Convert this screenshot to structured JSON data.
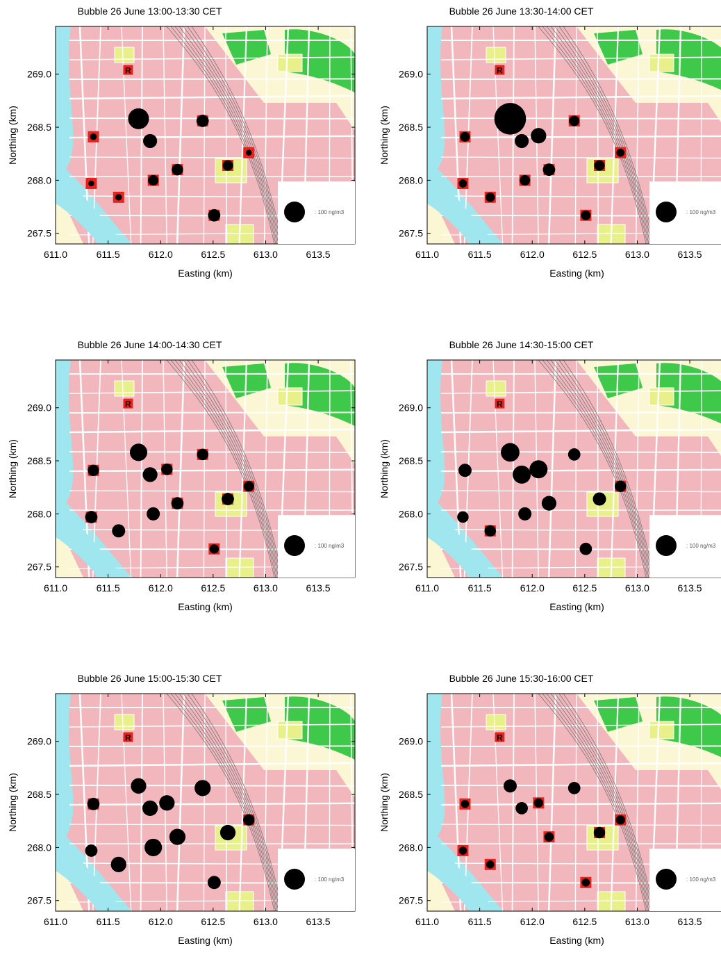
{
  "figure": {
    "xlabel": "Easting (km)",
    "ylabel": "Northing (km)",
    "legend_label": ": 100 ng/m3",
    "marker_R": "R"
  },
  "colors": {
    "site_square": "#e8231e",
    "bubble": "#000000",
    "water": "#9fe6ef",
    "buildings": "#f1b7bd",
    "forest": "#3fc94a",
    "park": "#e8f08a",
    "background": "#fbf7d4"
  },
  "chart_data": [
    {
      "type": "scatter",
      "title": "Bubble 26 June 13:00-13:30 CET",
      "xlabel": "Easting (km)",
      "ylabel": "Northing (km)",
      "xlim": [
        611.0,
        613.85
      ],
      "ylim": [
        267.4,
        269.45
      ],
      "xticks": [
        "611.0",
        "611.5",
        "612.0",
        "612.5",
        "613.0",
        "613.5"
      ],
      "yticks": [
        "267.5",
        "268.0",
        "268.5",
        "269.0"
      ],
      "reference_site": {
        "x": 611.69,
        "y": 269.04,
        "label": "R"
      },
      "legend": {
        "label": ": 100 ng/m3",
        "value": 100
      },
      "points": [
        {
          "x": 611.36,
          "y": 268.41,
          "value": 10,
          "site": true
        },
        {
          "x": 611.79,
          "y": 268.58,
          "value": 100,
          "site": false
        },
        {
          "x": 611.9,
          "y": 268.37,
          "value": 45,
          "site": false
        },
        {
          "x": 612.06,
          "y": 268.42,
          "value": 0,
          "site": false
        },
        {
          "x": 612.4,
          "y": 268.56,
          "value": 35,
          "site": true
        },
        {
          "x": 612.84,
          "y": 268.26,
          "value": 8,
          "site": true
        },
        {
          "x": 612.64,
          "y": 268.14,
          "value": 25,
          "site": true
        },
        {
          "x": 612.16,
          "y": 268.1,
          "value": 30,
          "site": true
        },
        {
          "x": 611.93,
          "y": 268.0,
          "value": 25,
          "site": true
        },
        {
          "x": 611.34,
          "y": 267.97,
          "value": 8,
          "site": true
        },
        {
          "x": 611.6,
          "y": 267.84,
          "value": 10,
          "site": true
        },
        {
          "x": 612.51,
          "y": 267.67,
          "value": 35,
          "site": true
        }
      ]
    },
    {
      "type": "scatter",
      "title": "Bubble 26 June 13:30-14:00 CET",
      "xlabel": "Easting (km)",
      "ylabel": "Northing (km)",
      "xlim": [
        611.0,
        613.85
      ],
      "ylim": [
        267.4,
        269.45
      ],
      "xticks": [
        "611.0",
        "611.5",
        "612.0",
        "612.5",
        "613.0",
        "613.5"
      ],
      "yticks": [
        "267.5",
        "268.0",
        "268.5",
        "269.0"
      ],
      "reference_site": {
        "x": 611.69,
        "y": 269.04,
        "label": "R"
      },
      "legend": {
        "label": ": 100 ng/m3",
        "value": 100
      },
      "points": [
        {
          "x": 611.36,
          "y": 268.41,
          "value": 22,
          "site": true
        },
        {
          "x": 611.79,
          "y": 268.58,
          "value": 230,
          "site": false
        },
        {
          "x": 611.9,
          "y": 268.37,
          "value": 45,
          "site": false
        },
        {
          "x": 612.06,
          "y": 268.42,
          "value": 55,
          "site": false
        },
        {
          "x": 612.4,
          "y": 268.56,
          "value": 25,
          "site": true
        },
        {
          "x": 612.84,
          "y": 268.26,
          "value": 15,
          "site": true
        },
        {
          "x": 612.64,
          "y": 268.14,
          "value": 25,
          "site": true
        },
        {
          "x": 612.16,
          "y": 268.1,
          "value": 35,
          "site": true
        },
        {
          "x": 611.93,
          "y": 268.0,
          "value": 25,
          "site": true
        },
        {
          "x": 611.34,
          "y": 267.97,
          "value": 15,
          "site": true
        },
        {
          "x": 611.6,
          "y": 267.84,
          "value": 20,
          "site": true
        },
        {
          "x": 612.51,
          "y": 267.67,
          "value": 22,
          "site": true
        }
      ]
    },
    {
      "type": "scatter",
      "title": "Bubble 26 June 14:00-14:30 CET",
      "xlabel": "Easting (km)",
      "ylabel": "Northing (km)",
      "xlim": [
        611.0,
        613.85
      ],
      "ylim": [
        267.4,
        269.45
      ],
      "xticks": [
        "611.0",
        "611.5",
        "612.0",
        "612.5",
        "613.0",
        "613.5"
      ],
      "yticks": [
        "267.5",
        "268.0",
        "268.5",
        "269.0"
      ],
      "reference_site": {
        "x": 611.69,
        "y": 269.04,
        "label": "R"
      },
      "legend": {
        "label": ": 100 ng/m3",
        "value": 100
      },
      "points": [
        {
          "x": 611.36,
          "y": 268.41,
          "value": 30,
          "site": true
        },
        {
          "x": 611.79,
          "y": 268.58,
          "value": 70,
          "site": false
        },
        {
          "x": 611.9,
          "y": 268.37,
          "value": 50,
          "site": false
        },
        {
          "x": 612.06,
          "y": 268.42,
          "value": 30,
          "site": true
        },
        {
          "x": 612.4,
          "y": 268.56,
          "value": 30,
          "site": true
        },
        {
          "x": 612.84,
          "y": 268.26,
          "value": 25,
          "site": true
        },
        {
          "x": 612.64,
          "y": 268.14,
          "value": 35,
          "site": true
        },
        {
          "x": 612.16,
          "y": 268.1,
          "value": 35,
          "site": true
        },
        {
          "x": 611.93,
          "y": 268.0,
          "value": 40,
          "site": false
        },
        {
          "x": 611.34,
          "y": 267.97,
          "value": 35,
          "site": true
        },
        {
          "x": 611.6,
          "y": 267.84,
          "value": 40,
          "site": false
        },
        {
          "x": 612.51,
          "y": 267.67,
          "value": 20,
          "site": true
        }
      ]
    },
    {
      "type": "scatter",
      "title": "Bubble 26 June 14:30-15:00 CET",
      "xlabel": "Easting (km)",
      "ylabel": "Northing (km)",
      "xlim": [
        611.0,
        613.85
      ],
      "ylim": [
        267.4,
        269.45
      ],
      "xticks": [
        "611.0",
        "611.5",
        "612.0",
        "612.5",
        "613.0",
        "613.5"
      ],
      "yticks": [
        "267.5",
        "268.0",
        "268.5",
        "269.0"
      ],
      "reference_site": {
        "x": 611.69,
        "y": 269.04,
        "label": "R"
      },
      "legend": {
        "label": ": 100 ng/m3",
        "value": 100
      },
      "points": [
        {
          "x": 611.36,
          "y": 268.41,
          "value": 40,
          "site": false
        },
        {
          "x": 611.79,
          "y": 268.58,
          "value": 80,
          "site": false
        },
        {
          "x": 611.9,
          "y": 268.37,
          "value": 75,
          "site": false
        },
        {
          "x": 612.06,
          "y": 268.42,
          "value": 75,
          "site": false
        },
        {
          "x": 612.4,
          "y": 268.56,
          "value": 35,
          "site": false
        },
        {
          "x": 612.84,
          "y": 268.26,
          "value": 30,
          "site": true
        },
        {
          "x": 612.64,
          "y": 268.14,
          "value": 40,
          "site": false
        },
        {
          "x": 612.16,
          "y": 268.1,
          "value": 50,
          "site": false
        },
        {
          "x": 611.93,
          "y": 268.0,
          "value": 40,
          "site": false
        },
        {
          "x": 611.34,
          "y": 267.97,
          "value": 30,
          "site": false
        },
        {
          "x": 611.6,
          "y": 267.84,
          "value": 30,
          "site": true
        },
        {
          "x": 612.51,
          "y": 267.67,
          "value": 35,
          "site": false
        }
      ]
    },
    {
      "type": "scatter",
      "title": "Bubble 26 June 15:00-15:30 CET",
      "xlabel": "Easting (km)",
      "ylabel": "Northing (km)",
      "xlim": [
        611.0,
        613.85
      ],
      "ylim": [
        267.4,
        269.45
      ],
      "xticks": [
        "611.0",
        "611.5",
        "612.0",
        "612.5",
        "613.0",
        "613.5"
      ],
      "yticks": [
        "267.5",
        "268.0",
        "268.5",
        "269.0"
      ],
      "reference_site": {
        "x": 611.69,
        "y": 269.04,
        "label": "R"
      },
      "legend": {
        "label": ": 100 ng/m3",
        "value": 100
      },
      "points": [
        {
          "x": 611.36,
          "y": 268.41,
          "value": 35,
          "site": true
        },
        {
          "x": 611.79,
          "y": 268.58,
          "value": 55,
          "site": false
        },
        {
          "x": 611.9,
          "y": 268.37,
          "value": 55,
          "site": false
        },
        {
          "x": 612.06,
          "y": 268.42,
          "value": 55,
          "site": false
        },
        {
          "x": 612.4,
          "y": 268.56,
          "value": 60,
          "site": false
        },
        {
          "x": 612.84,
          "y": 268.26,
          "value": 30,
          "site": true
        },
        {
          "x": 612.64,
          "y": 268.14,
          "value": 55,
          "site": false
        },
        {
          "x": 612.16,
          "y": 268.1,
          "value": 60,
          "site": false
        },
        {
          "x": 611.93,
          "y": 268.0,
          "value": 70,
          "site": false
        },
        {
          "x": 611.34,
          "y": 267.97,
          "value": 35,
          "site": false
        },
        {
          "x": 611.6,
          "y": 267.84,
          "value": 55,
          "site": false
        },
        {
          "x": 612.51,
          "y": 267.67,
          "value": 40,
          "site": false
        }
      ]
    },
    {
      "type": "scatter",
      "title": "Bubble 26 June 15:30-16:00 CET",
      "xlabel": "Easting (km)",
      "ylabel": "Northing (km)",
      "xlim": [
        611.0,
        613.85
      ],
      "ylim": [
        267.4,
        269.45
      ],
      "xticks": [
        "611.0",
        "611.5",
        "612.0",
        "612.5",
        "613.0",
        "613.5"
      ],
      "yticks": [
        "267.5",
        "268.0",
        "268.5",
        "269.0"
      ],
      "reference_site": {
        "x": 611.69,
        "y": 269.04,
        "label": "R"
      },
      "legend": {
        "label": ": 100 ng/m3",
        "value": 100
      },
      "points": [
        {
          "x": 611.36,
          "y": 268.41,
          "value": 15,
          "site": true
        },
        {
          "x": 611.79,
          "y": 268.58,
          "value": 40,
          "site": false
        },
        {
          "x": 611.9,
          "y": 268.37,
          "value": 35,
          "site": false
        },
        {
          "x": 612.06,
          "y": 268.42,
          "value": 20,
          "site": true
        },
        {
          "x": 612.4,
          "y": 268.56,
          "value": 35,
          "site": false
        },
        {
          "x": 612.84,
          "y": 268.26,
          "value": 20,
          "site": true
        },
        {
          "x": 612.64,
          "y": 268.14,
          "value": 30,
          "site": true
        },
        {
          "x": 612.16,
          "y": 268.1,
          "value": 20,
          "site": true
        },
        {
          "x": 611.93,
          "y": 268.0,
          "value": 0,
          "site": false
        },
        {
          "x": 611.34,
          "y": 267.97,
          "value": 15,
          "site": true
        },
        {
          "x": 611.6,
          "y": 267.84,
          "value": 15,
          "site": true
        },
        {
          "x": 612.51,
          "y": 267.67,
          "value": 15,
          "site": true
        }
      ]
    }
  ]
}
